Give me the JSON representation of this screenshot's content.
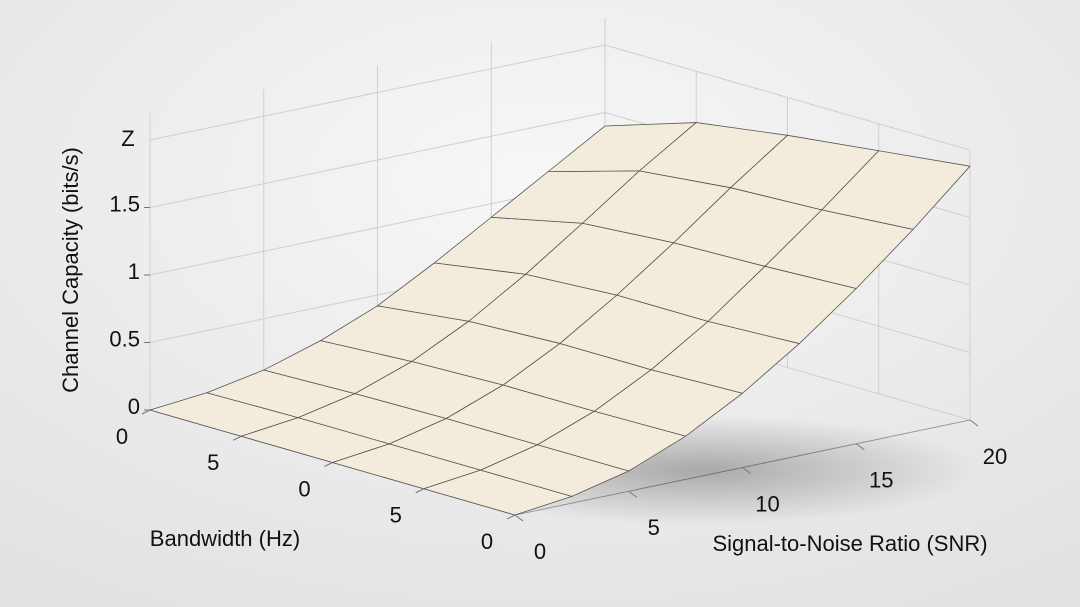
{
  "chart_data": {
    "type": "surface",
    "zlabel": "Channel Capacity (bits/s)",
    "z_axis_name": "Z",
    "xlabel": "Signal-to-Noise Ratio (SNR)",
    "ylabel": "Bandwidth (Hz)",
    "x": [
      0,
      2.5,
      5,
      7.5,
      10,
      12.5,
      15,
      17.5,
      20
    ],
    "xlim": [
      0,
      20
    ],
    "xticks": [
      0,
      5,
      10,
      15,
      20
    ],
    "y_tick_labels": [
      "0",
      "5",
      "0",
      "5",
      "0"
    ],
    "zlim": [
      0,
      2
    ],
    "zticks": [
      0,
      0.5,
      1,
      1.5
    ],
    "color": "#f3ecdc",
    "z": [
      [
        0,
        0.04,
        0.12,
        0.25,
        0.42,
        0.65,
        0.9,
        1.15,
        1.4
      ],
      [
        0,
        0.05,
        0.14,
        0.29,
        0.5,
        0.76,
        1.05,
        1.35,
        1.62
      ],
      [
        0,
        0.05,
        0.15,
        0.31,
        0.53,
        0.8,
        1.1,
        1.42,
        1.72
      ],
      [
        0,
        0.05,
        0.15,
        0.31,
        0.53,
        0.8,
        1.12,
        1.45,
        1.8
      ],
      [
        0,
        0.05,
        0.15,
        0.32,
        0.55,
        0.83,
        1.15,
        1.5,
        1.88
      ]
    ],
    "grid": true
  }
}
